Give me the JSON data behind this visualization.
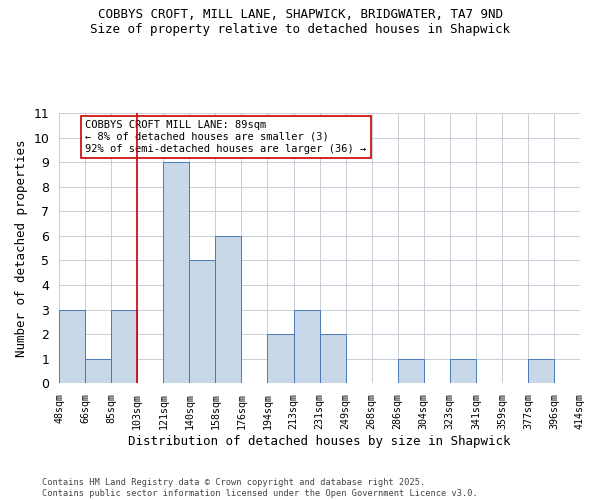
{
  "title_line1": "COBBYS CROFT, MILL LANE, SHAPWICK, BRIDGWATER, TA7 9ND",
  "title_line2": "Size of property relative to detached houses in Shapwick",
  "xlabel": "Distribution of detached houses by size in Shapwick",
  "ylabel": "Number of detached properties",
  "bin_labels": [
    "48sqm",
    "66sqm",
    "85sqm",
    "103sqm",
    "121sqm",
    "140sqm",
    "158sqm",
    "176sqm",
    "194sqm",
    "213sqm",
    "231sqm",
    "249sqm",
    "268sqm",
    "286sqm",
    "304sqm",
    "323sqm",
    "341sqm",
    "359sqm",
    "377sqm",
    "396sqm",
    "414sqm"
  ],
  "counts": [
    3,
    1,
    3,
    0,
    9,
    5,
    6,
    0,
    2,
    3,
    2,
    0,
    0,
    1,
    0,
    1,
    0,
    0,
    1,
    0
  ],
  "bar_facecolor": "#c8d8e8",
  "bar_edgecolor": "#4a7ab5",
  "subject_bar_index": 2,
  "subject_line_color": "#cc0000",
  "ylim": [
    0,
    11
  ],
  "yticks": [
    0,
    1,
    2,
    3,
    4,
    5,
    6,
    7,
    8,
    9,
    10,
    11
  ],
  "annotation_text": "COBBYS CROFT MILL LANE: 89sqm\n← 8% of detached houses are smaller (3)\n92% of semi-detached houses are larger (36) →",
  "annotation_box_color": "#cc0000",
  "footer_text": "Contains HM Land Registry data © Crown copyright and database right 2025.\nContains public sector information licensed under the Open Government Licence v3.0.",
  "background_color": "#ffffff",
  "grid_color": "#c0c8d0"
}
